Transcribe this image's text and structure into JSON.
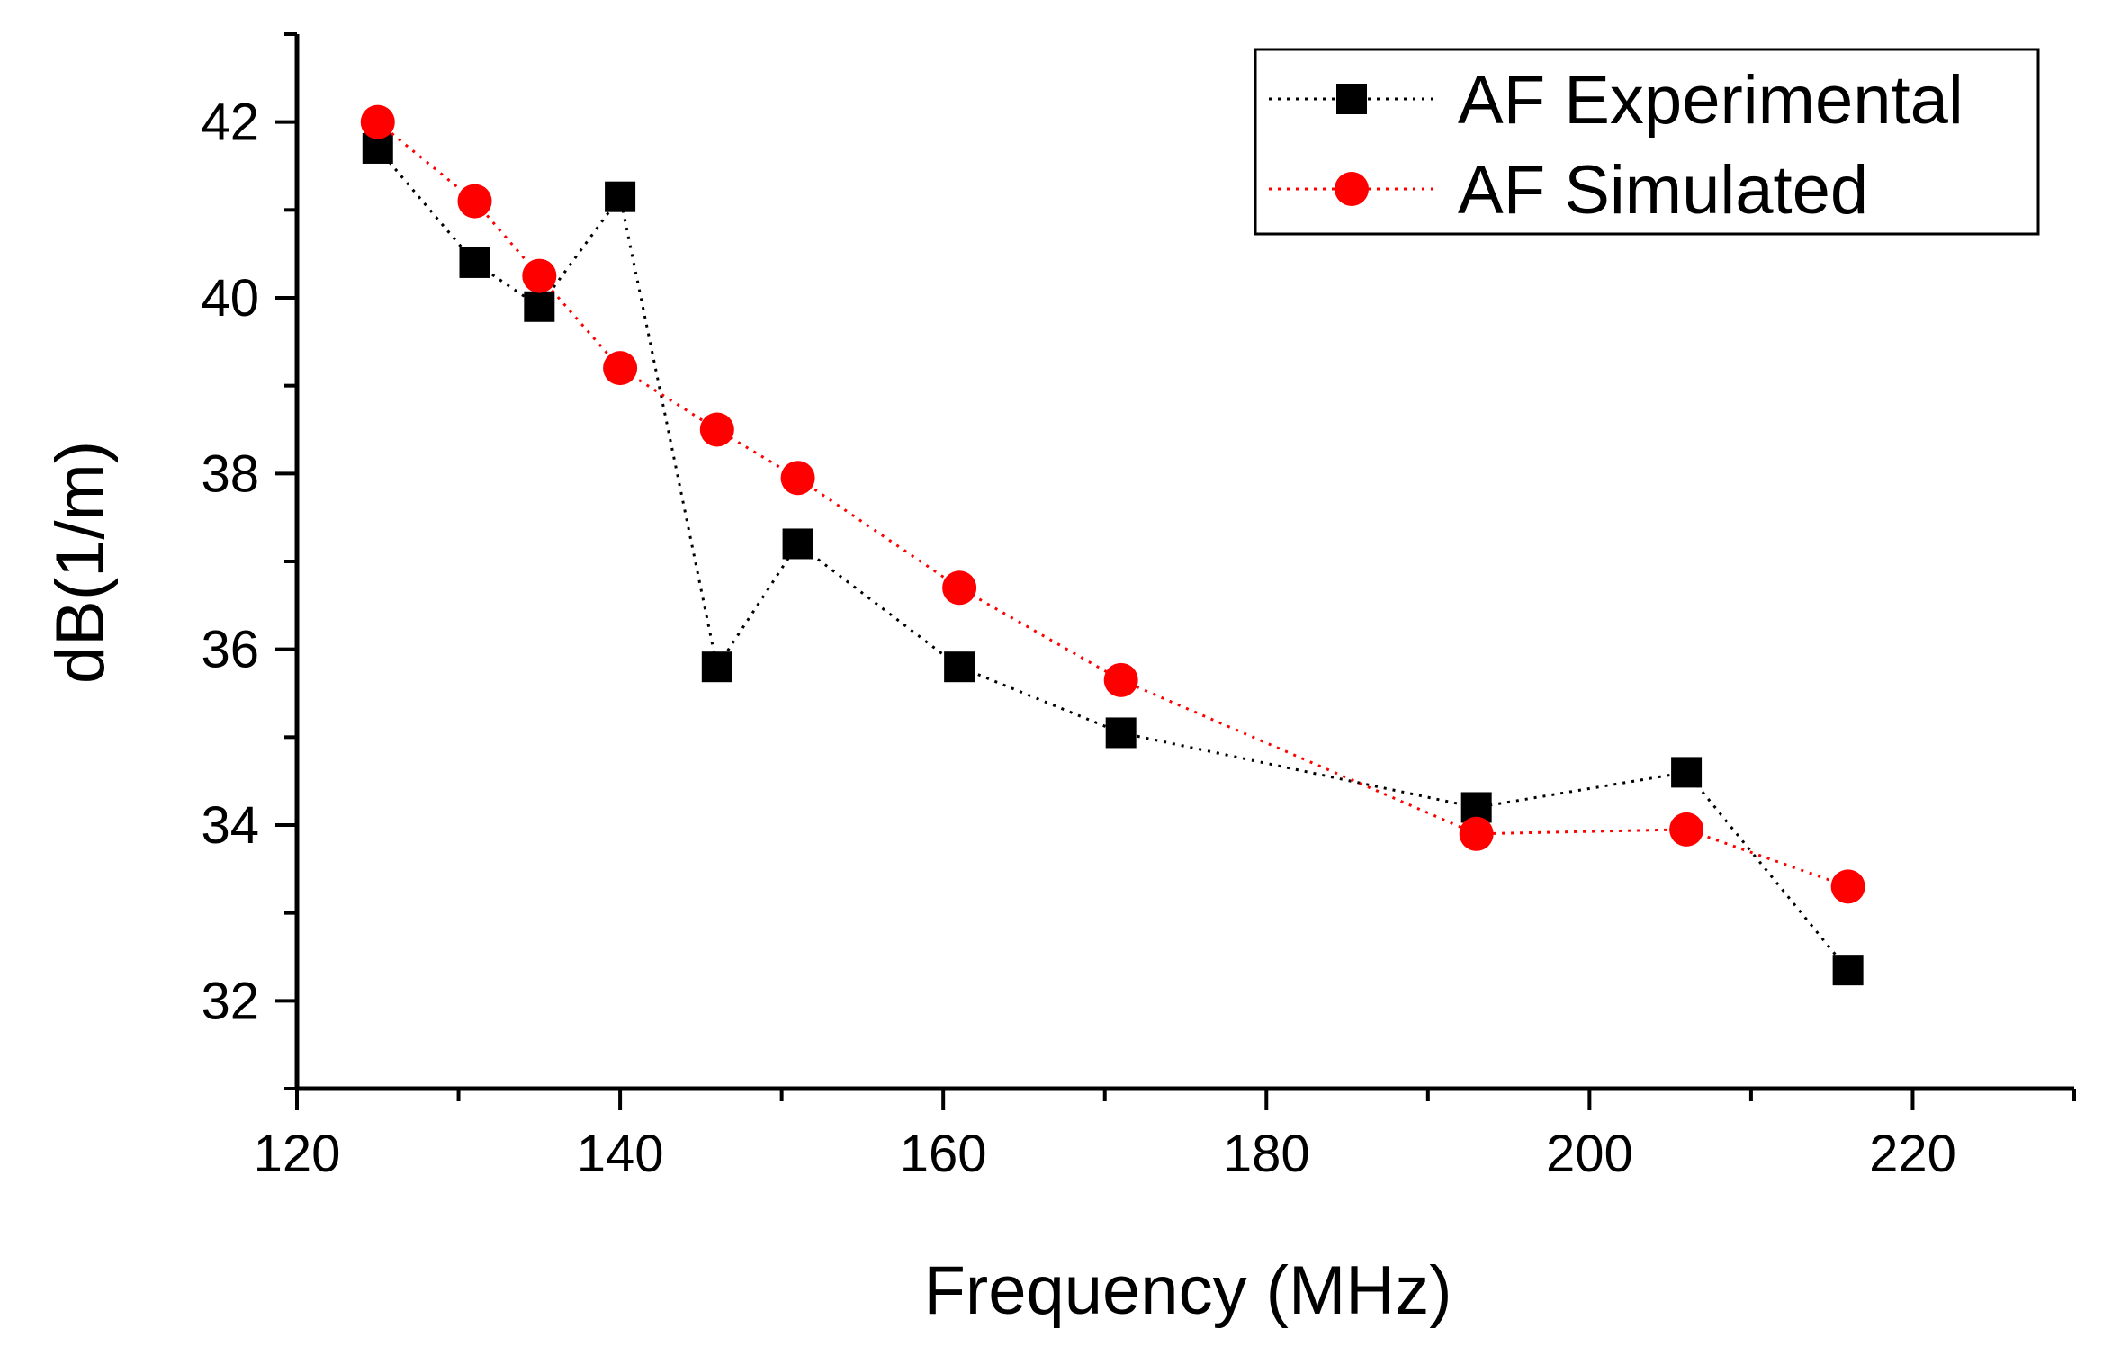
{
  "chart_data": {
    "type": "line",
    "title": "",
    "xlabel": "Frequency (MHz)",
    "ylabel": "dB(1/m)",
    "xlim": [
      120,
      230
    ],
    "ylim": [
      31,
      43
    ],
    "x_ticks": [
      120,
      140,
      160,
      180,
      200,
      220
    ],
    "y_ticks": [
      32,
      34,
      36,
      38,
      40,
      42
    ],
    "x_tick_labels": [
      "120",
      "140",
      "160",
      "180",
      "200",
      "220"
    ],
    "y_tick_labels": [
      "32",
      "34",
      "36",
      "38",
      "40",
      "42"
    ],
    "grid": false,
    "legend_position": "top-right",
    "series": [
      {
        "name": "AF Experimental",
        "marker": "square",
        "line_style": "dotted",
        "color": "#000000",
        "points": [
          [
            125,
            41.7
          ],
          [
            131,
            40.4
          ],
          [
            135,
            39.9
          ],
          [
            140,
            41.15
          ],
          [
            146,
            35.8
          ],
          [
            151,
            37.2
          ],
          [
            161,
            35.8
          ],
          [
            171,
            35.05
          ],
          [
            193,
            34.2
          ],
          [
            206,
            34.6
          ],
          [
            216,
            32.35
          ]
        ]
      },
      {
        "name": "AF Simulated",
        "marker": "circle",
        "line_style": "dotted",
        "color": "#ff0000",
        "points": [
          [
            125,
            42.0
          ],
          [
            131,
            41.1
          ],
          [
            135,
            40.25
          ],
          [
            140,
            39.2
          ],
          [
            146,
            38.5
          ],
          [
            151,
            37.95
          ],
          [
            161,
            36.7
          ],
          [
            171,
            35.65
          ],
          [
            193,
            33.9
          ],
          [
            206,
            33.95
          ],
          [
            216,
            33.3
          ]
        ]
      }
    ]
  }
}
